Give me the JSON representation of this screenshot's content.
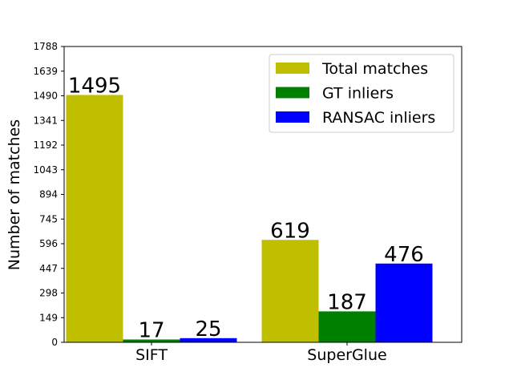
{
  "chart_data": {
    "type": "bar",
    "title": "",
    "xlabel": "",
    "ylabel": "Number of matches",
    "categories": [
      "SIFT",
      "SuperGlue"
    ],
    "series": [
      {
        "name": "Total matches",
        "color": "#bfbf00",
        "values": [
          1495,
          619
        ]
      },
      {
        "name": "GT inliers",
        "color": "#008000",
        "values": [
          17,
          187
        ]
      },
      {
        "name": "RANSAC inliers",
        "color": "#0000ff",
        "values": [
          25,
          476
        ]
      }
    ],
    "ylim": [
      0,
      1788
    ],
    "yticks": [
      "0",
      "149",
      "298",
      "447",
      "596",
      "745",
      "894",
      "1043",
      "1192",
      "1341",
      "1490",
      "1639",
      "1788"
    ],
    "data_labels": true,
    "grid": false,
    "legend_position": "top-right"
  }
}
